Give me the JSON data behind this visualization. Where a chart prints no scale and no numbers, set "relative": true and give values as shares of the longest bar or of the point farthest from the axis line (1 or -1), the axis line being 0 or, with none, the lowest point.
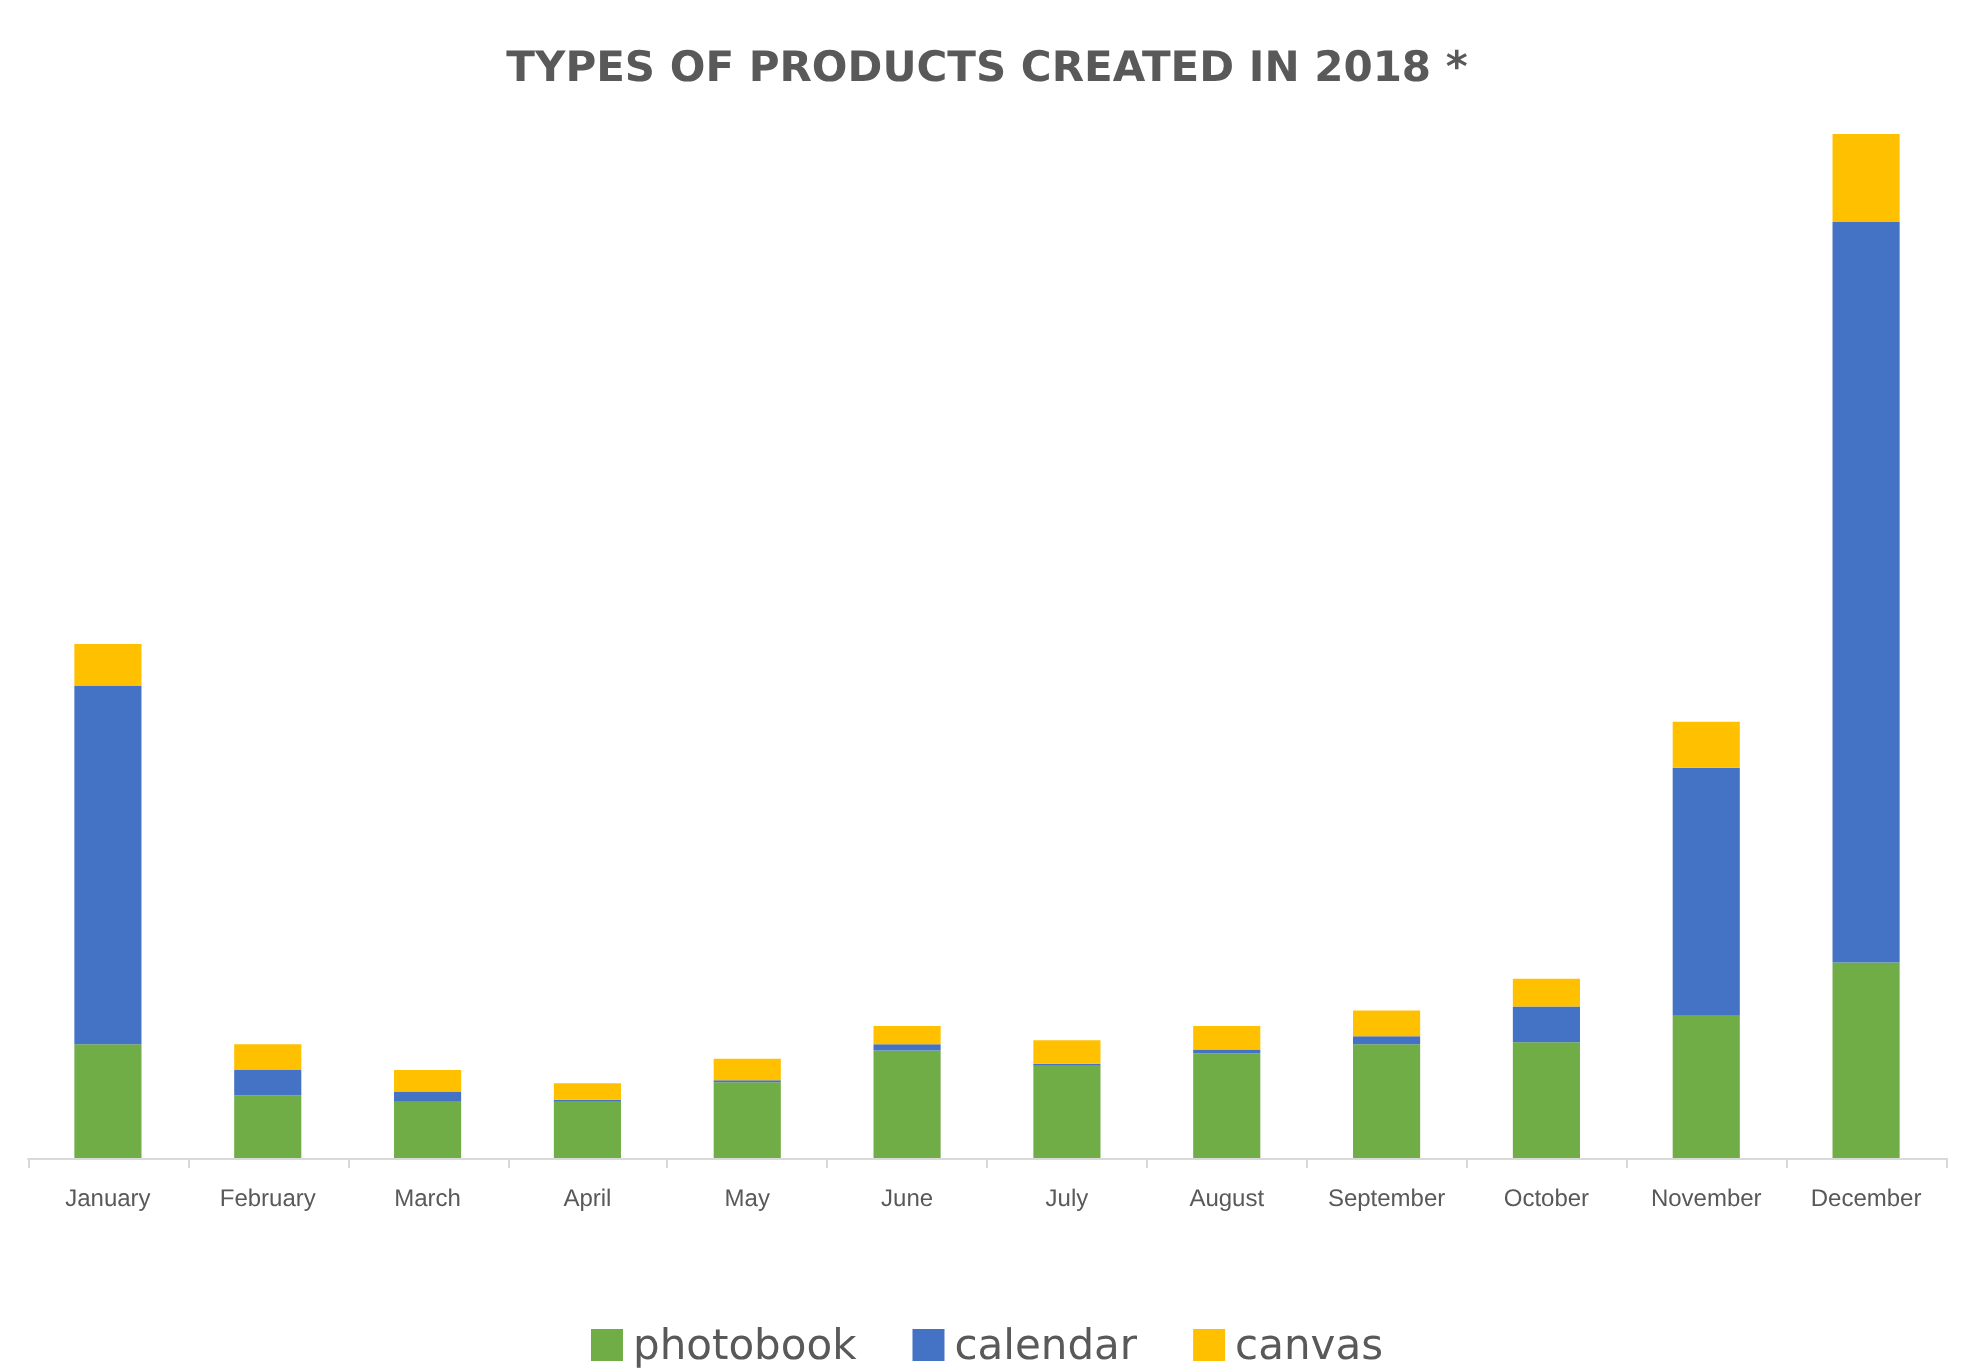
{
  "chart_data": {
    "type": "bar",
    "title": "TYPES OF PRODUCTS CREATED IN 2018 *",
    "relative": true,
    "stacked": true,
    "legend": "bottom",
    "categories": [
      "January",
      "February",
      "March",
      "April",
      "May",
      "June",
      "July",
      "August",
      "September",
      "October",
      "November",
      "December"
    ],
    "series": [
      {
        "name": "photobook",
        "color": "#70ad47",
        "values": [
          0.111,
          0.061,
          0.055,
          0.055,
          0.074,
          0.105,
          0.09,
          0.102,
          0.111,
          0.113,
          0.139,
          0.191
        ]
      },
      {
        "name": "calendar",
        "color": "#4472c4",
        "values": [
          0.35,
          0.025,
          0.01,
          0.002,
          0.002,
          0.006,
          0.002,
          0.004,
          0.008,
          0.035,
          0.242,
          0.723
        ]
      },
      {
        "name": "canvas",
        "color": "#ffc000",
        "values": [
          0.041,
          0.025,
          0.021,
          0.016,
          0.021,
          0.018,
          0.023,
          0.023,
          0.025,
          0.027,
          0.045,
          0.086
        ]
      }
    ]
  }
}
